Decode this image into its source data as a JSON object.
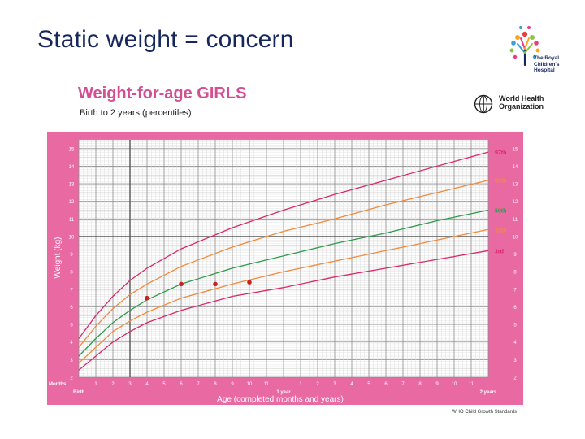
{
  "slide": {
    "title": "Static weight  = concern"
  },
  "logo": {
    "text_lines": [
      "The Royal",
      "Children's",
      "Hospital"
    ]
  },
  "who": {
    "name_lines": [
      "World Health",
      "Organization"
    ],
    "source": "WHO Child Growth Standards"
  },
  "chart_data": {
    "type": "line",
    "title": "Weight-for-age GIRLS",
    "subtitle": "Birth to 2 years (percentiles)",
    "xlabel": "Age (completed months and years)",
    "ylabel": "Weight (kg)",
    "x_unit": "months",
    "xlim": [
      0,
      24
    ],
    "ylim": [
      2,
      15.5
    ],
    "grid": true,
    "y_ticks": [
      2,
      3,
      4,
      5,
      6,
      7,
      8,
      9,
      10,
      11,
      12,
      13,
      14,
      15
    ],
    "x_tick_labels": [
      {
        "x": 0,
        "label": "Birth"
      },
      {
        "x": 1,
        "label": "1"
      },
      {
        "x": 2,
        "label": "2"
      },
      {
        "x": 3,
        "label": "3"
      },
      {
        "x": 4,
        "label": "4"
      },
      {
        "x": 5,
        "label": "5"
      },
      {
        "x": 6,
        "label": "6"
      },
      {
        "x": 7,
        "label": "7"
      },
      {
        "x": 8,
        "label": "8"
      },
      {
        "x": 9,
        "label": "9"
      },
      {
        "x": 10,
        "label": "10"
      },
      {
        "x": 11,
        "label": "11"
      },
      {
        "x": 12,
        "label": "1 year"
      },
      {
        "x": 13,
        "label": "1"
      },
      {
        "x": 14,
        "label": "2"
      },
      {
        "x": 15,
        "label": "3"
      },
      {
        "x": 16,
        "label": "4"
      },
      {
        "x": 17,
        "label": "5"
      },
      {
        "x": 18,
        "label": "6"
      },
      {
        "x": 19,
        "label": "7"
      },
      {
        "x": 20,
        "label": "8"
      },
      {
        "x": 21,
        "label": "9"
      },
      {
        "x": 22,
        "label": "10"
      },
      {
        "x": 23,
        "label": "11"
      },
      {
        "x": 24,
        "label": "2 years"
      }
    ],
    "months_label": "Months",
    "x": [
      0,
      1,
      2,
      3,
      4,
      6,
      9,
      12,
      15,
      18,
      21,
      24
    ],
    "series": [
      {
        "name": "97th",
        "color": "#d9286b",
        "values": [
          4.2,
          5.5,
          6.6,
          7.5,
          8.2,
          9.3,
          10.5,
          11.5,
          12.4,
          13.2,
          14.0,
          14.8
        ]
      },
      {
        "name": "85th",
        "color": "#f08a3c",
        "values": [
          3.7,
          4.9,
          5.9,
          6.7,
          7.3,
          8.3,
          9.4,
          10.3,
          11.0,
          11.8,
          12.5,
          13.2
        ]
      },
      {
        "name": "50th",
        "color": "#2e9a4a",
        "values": [
          3.2,
          4.2,
          5.1,
          5.8,
          6.4,
          7.3,
          8.2,
          8.9,
          9.6,
          10.2,
          10.9,
          11.5
        ]
      },
      {
        "name": "15th",
        "color": "#f08a3c",
        "values": [
          2.8,
          3.7,
          4.6,
          5.2,
          5.7,
          6.5,
          7.3,
          8.0,
          8.6,
          9.2,
          9.8,
          10.4
        ]
      },
      {
        "name": "3rd",
        "color": "#d9286b",
        "values": [
          2.4,
          3.2,
          4.0,
          4.6,
          5.1,
          5.8,
          6.6,
          7.1,
          7.7,
          8.2,
          8.7,
          9.2
        ]
      }
    ],
    "patient_points": {
      "color": "#cc1f1f",
      "x": [
        4,
        6,
        8,
        10
      ],
      "y": [
        6.5,
        7.3,
        7.3,
        7.4
      ]
    },
    "reference_lines": {
      "x": 3,
      "y": 10
    }
  }
}
